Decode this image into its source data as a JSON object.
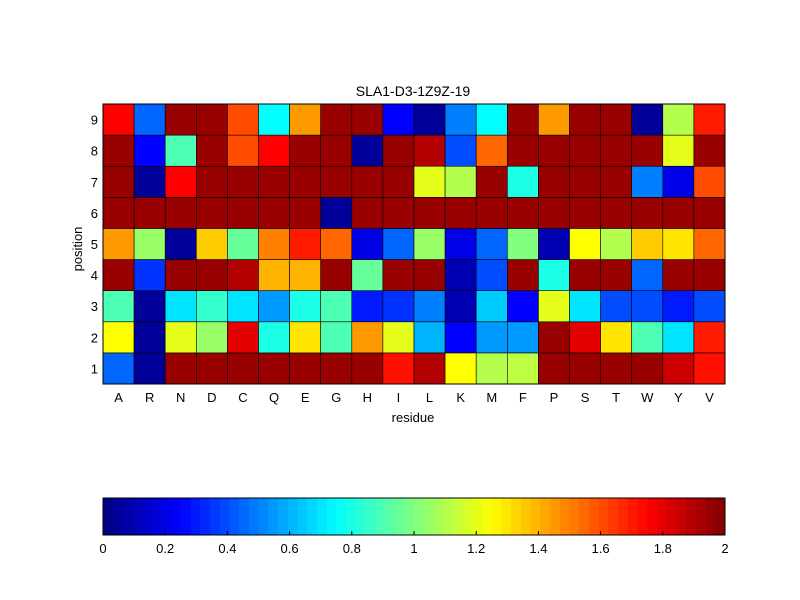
{
  "chart_data": {
    "type": "heatmap",
    "title": "SLA1-D3-1Z9Z-19",
    "xlabel": "residue",
    "ylabel": "position",
    "x_categories": [
      "A",
      "R",
      "N",
      "D",
      "C",
      "Q",
      "E",
      "G",
      "H",
      "I",
      "L",
      "K",
      "M",
      "F",
      "P",
      "S",
      "T",
      "W",
      "Y",
      "V"
    ],
    "y_categories": [
      "1",
      "2",
      "3",
      "4",
      "5",
      "6",
      "7",
      "8",
      "9"
    ],
    "value_range": [
      0,
      2
    ],
    "colormap": "jet",
    "colorbar_ticks": [
      "0",
      "0.2",
      "0.4",
      "0.6",
      "0.8",
      "1",
      "1.2",
      "1.4",
      "1.6",
      "1.8",
      "2"
    ],
    "colorbar_orientation": "horizontal",
    "colorbar_position": "bottom",
    "values": [
      [
        0.45,
        0.05,
        1.95,
        1.95,
        1.95,
        1.95,
        1.95,
        1.95,
        1.95,
        1.72,
        1.9,
        1.25,
        1.1,
        1.12,
        1.95,
        1.95,
        1.95,
        1.95,
        1.85,
        1.72
      ],
      [
        1.25,
        0.05,
        1.2,
        1.05,
        1.8,
        0.8,
        1.3,
        0.9,
        1.45,
        1.2,
        0.6,
        0.25,
        0.55,
        0.55,
        1.95,
        1.8,
        1.3,
        0.9,
        0.7,
        1.7
      ],
      [
        0.9,
        0.05,
        0.7,
        0.85,
        0.7,
        0.55,
        0.8,
        0.9,
        0.3,
        0.35,
        0.5,
        0.1,
        0.65,
        0.25,
        1.2,
        0.7,
        0.4,
        0.4,
        0.3,
        0.4
      ],
      [
        1.95,
        0.35,
        1.95,
        1.95,
        1.9,
        1.4,
        1.4,
        1.95,
        0.95,
        1.95,
        1.95,
        0.1,
        0.4,
        1.95,
        0.8,
        1.95,
        1.95,
        0.45,
        1.95,
        1.95
      ],
      [
        1.45,
        1.05,
        0.05,
        1.35,
        0.95,
        1.5,
        1.7,
        1.55,
        0.2,
        0.45,
        1.05,
        0.2,
        0.45,
        1.0,
        0.1,
        1.25,
        1.1,
        1.35,
        1.3,
        1.55
      ],
      [
        1.95,
        1.95,
        1.95,
        1.95,
        1.95,
        1.95,
        1.95,
        0.05,
        1.95,
        1.95,
        1.95,
        1.95,
        1.95,
        1.95,
        1.95,
        1.95,
        1.95,
        1.95,
        1.95,
        1.95
      ],
      [
        1.95,
        0.05,
        1.75,
        1.95,
        1.95,
        1.95,
        1.95,
        1.95,
        1.95,
        1.95,
        1.2,
        1.1,
        1.95,
        0.8,
        1.95,
        1.95,
        1.95,
        0.5,
        0.2,
        1.6
      ],
      [
        1.95,
        0.25,
        0.9,
        1.95,
        1.6,
        1.75,
        1.95,
        1.95,
        0.05,
        1.95,
        1.9,
        0.4,
        1.55,
        1.95,
        1.95,
        1.95,
        1.95,
        1.95,
        1.2,
        1.95
      ],
      [
        1.75,
        0.45,
        1.95,
        1.95,
        1.6,
        0.75,
        1.45,
        1.95,
        1.95,
        0.25,
        0.05,
        0.5,
        0.75,
        1.95,
        1.45,
        1.95,
        1.95,
        0.05,
        1.1,
        1.7
      ]
    ]
  }
}
